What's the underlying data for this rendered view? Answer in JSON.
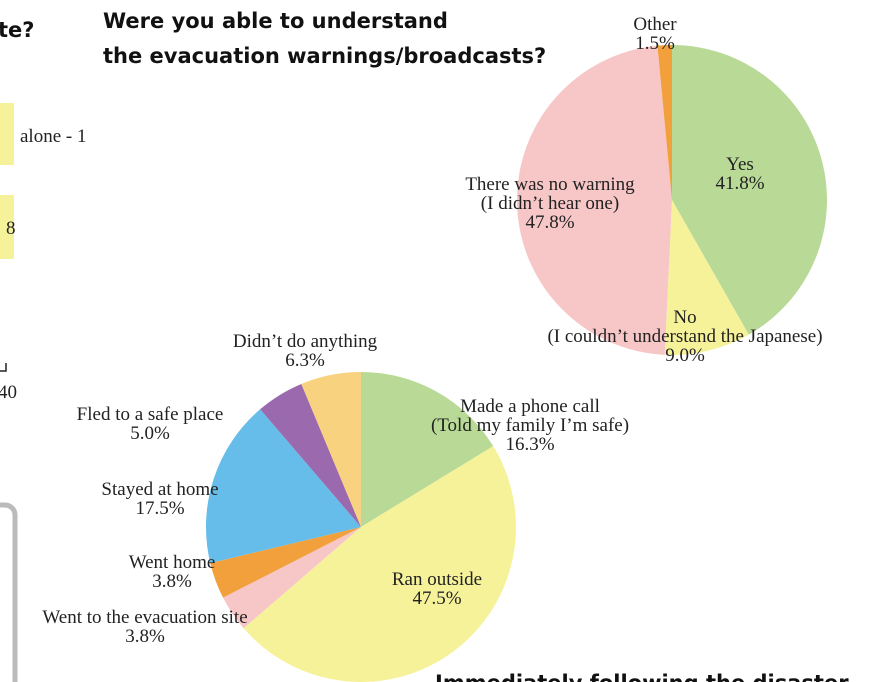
{
  "chart_data": [
    {
      "type": "pie",
      "title": [
        "Were you able to understand",
        "the evacuation warnings/broadcasts?"
      ],
      "categories": [
        [
          "Yes"
        ],
        [
          "No",
          "(I couldn’t understand the Japanese)"
        ],
        [
          "There was no warning",
          "(I didn’t hear one)"
        ],
        [
          "Other"
        ]
      ],
      "values": [
        41.8,
        9.0,
        47.8,
        1.5
      ],
      "value_labels": [
        "41.8%",
        "9.0%",
        "47.8%",
        "1.5%"
      ],
      "colors": [
        "#b9da97",
        "#f6f29a",
        "#f7c6c6",
        "#f2a03c"
      ]
    },
    {
      "type": "pie",
      "title": [
        "Immediately following the disaster"
      ],
      "categories": [
        [
          "Made a phone call",
          "(Told my family I’m safe)"
        ],
        [
          "Ran outside"
        ],
        [
          "Went to the evacuation site"
        ],
        [
          "Went home"
        ],
        [
          "Stayed at home"
        ],
        [
          "Fled to a safe place"
        ],
        [
          "Didn’t do anything"
        ]
      ],
      "values": [
        16.3,
        47.5,
        3.8,
        3.8,
        17.5,
        5.0,
        6.3
      ],
      "value_labels": [
        "16.3%",
        "47.5%",
        "3.8%",
        "3.8%",
        "17.5%",
        "5.0%",
        "6.3%"
      ],
      "colors": [
        "#b9da97",
        "#f6f29a",
        "#f7c6c6",
        "#f2a03c",
        "#66bde9",
        "#9b6aae",
        "#f8d27f"
      ]
    }
  ],
  "fragments": {
    "heading": "te?",
    "box_1": "alone - 1",
    "box_2": "8",
    "axis_end": "40"
  }
}
